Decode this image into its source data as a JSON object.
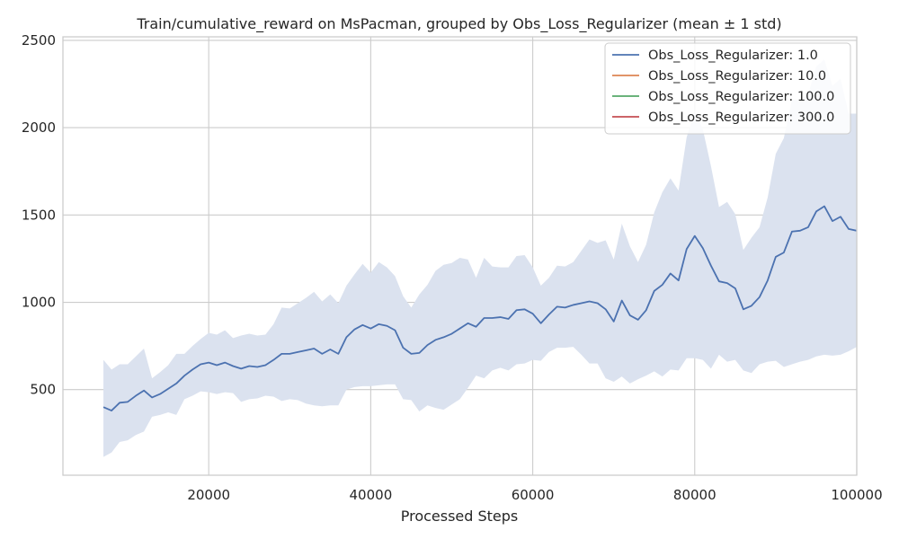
{
  "chart_data": {
    "type": "line",
    "title": "Train/cumulative_reward on MsPacman, grouped by Obs_Loss_Regularizer (mean ± 1 std)",
    "xlabel": "Processed Steps",
    "ylabel": "",
    "xlim": [
      2000,
      100000
    ],
    "ylim": [
      10,
      2520
    ],
    "xticks": [
      20000,
      40000,
      60000,
      80000,
      100000
    ],
    "yticks": [
      500,
      1000,
      1500,
      2000,
      2500
    ],
    "grid": true,
    "legend_position": "top-right",
    "series": [
      {
        "name": "Obs_Loss_Regularizer: 1.0",
        "color": "#4c72b0",
        "band_color": "#dbe2ef",
        "x": [
          7000,
          8000,
          9000,
          10000,
          11000,
          12000,
          13000,
          14000,
          15000,
          16000,
          17000,
          18000,
          19000,
          20000,
          21000,
          22000,
          23000,
          24000,
          25000,
          26000,
          27000,
          28000,
          29000,
          30000,
          31000,
          32000,
          33000,
          34000,
          35000,
          36000,
          37000,
          38000,
          39000,
          40000,
          41000,
          42000,
          43000,
          44000,
          45000,
          46000,
          47000,
          48000,
          49000,
          50000,
          51000,
          52000,
          53000,
          54000,
          55000,
          56000,
          57000,
          58000,
          59000,
          60000,
          61000,
          62000,
          63000,
          64000,
          65000,
          66000,
          67000,
          68000,
          69000,
          70000,
          71000,
          72000,
          73000,
          74000,
          75000,
          76000,
          77000,
          78000,
          79000,
          80000,
          81000,
          82000,
          83000,
          84000,
          85000,
          86000,
          87000,
          88000,
          89000,
          90000,
          91000,
          92000,
          93000,
          94000,
          95000,
          96000,
          97000,
          98000,
          99000,
          100000
        ],
        "mean": [
          400,
          380,
          425,
          430,
          465,
          495,
          455,
          475,
          505,
          535,
          580,
          615,
          645,
          655,
          640,
          655,
          635,
          620,
          635,
          630,
          640,
          670,
          705,
          705,
          715,
          725,
          735,
          705,
          730,
          705,
          800,
          845,
          870,
          850,
          875,
          865,
          840,
          740,
          705,
          710,
          755,
          785,
          800,
          820,
          850,
          880,
          860,
          910,
          910,
          915,
          905,
          955,
          960,
          935,
          880,
          930,
          975,
          970,
          985,
          995,
          1005,
          995,
          960,
          890,
          1010,
          925,
          900,
          955,
          1065,
          1100,
          1165,
          1125,
          1305,
          1380,
          1310,
          1210,
          1120,
          1110,
          1080,
          960,
          980,
          1030,
          1125,
          1260,
          1285,
          1405,
          1410,
          1430,
          1520,
          1550,
          1465,
          1490,
          1420,
          1410
        ],
        "lower": [
          115,
          140,
          200,
          210,
          240,
          260,
          345,
          355,
          370,
          355,
          445,
          465,
          490,
          485,
          475,
          485,
          480,
          430,
          445,
          450,
          465,
          460,
          435,
          445,
          440,
          420,
          410,
          405,
          410,
          410,
          500,
          515,
          520,
          520,
          525,
          530,
          530,
          445,
          440,
          375,
          410,
          395,
          385,
          415,
          445,
          510,
          580,
          565,
          610,
          625,
          610,
          645,
          650,
          670,
          665,
          715,
          740,
          740,
          745,
          700,
          650,
          650,
          565,
          545,
          575,
          535,
          560,
          580,
          605,
          575,
          615,
          610,
          680,
          680,
          670,
          620,
          700,
          660,
          670,
          610,
          595,
          645,
          660,
          665,
          630,
          645,
          660,
          670,
          690,
          700,
          695,
          700,
          720,
          745
        ],
        "upper": [
          670,
          615,
          645,
          645,
          690,
          735,
          565,
          600,
          640,
          705,
          705,
          750,
          790,
          825,
          815,
          840,
          795,
          810,
          820,
          810,
          815,
          875,
          970,
          965,
          995,
          1025,
          1060,
          1005,
          1045,
          995,
          1095,
          1160,
          1220,
          1170,
          1230,
          1200,
          1150,
          1035,
          970,
          1045,
          1100,
          1180,
          1215,
          1225,
          1255,
          1245,
          1140,
          1255,
          1205,
          1200,
          1200,
          1265,
          1270,
          1200,
          1095,
          1140,
          1210,
          1205,
          1230,
          1295,
          1360,
          1340,
          1355,
          1245,
          1450,
          1320,
          1230,
          1330,
          1515,
          1630,
          1710,
          1640,
          1945,
          2090,
          1990,
          1780,
          1545,
          1575,
          1505,
          1300,
          1370,
          1430,
          1600,
          1850,
          1940,
          2160,
          2160,
          2190,
          2350,
          2390,
          2240,
          2280,
          2080,
          2080
        ]
      },
      {
        "name": "Obs_Loss_Regularizer: 10.0",
        "color": "#dd8452"
      },
      {
        "name": "Obs_Loss_Regularizer: 100.0",
        "color": "#55a868"
      },
      {
        "name": "Obs_Loss_Regularizer: 300.0",
        "color": "#c44e52"
      }
    ]
  }
}
